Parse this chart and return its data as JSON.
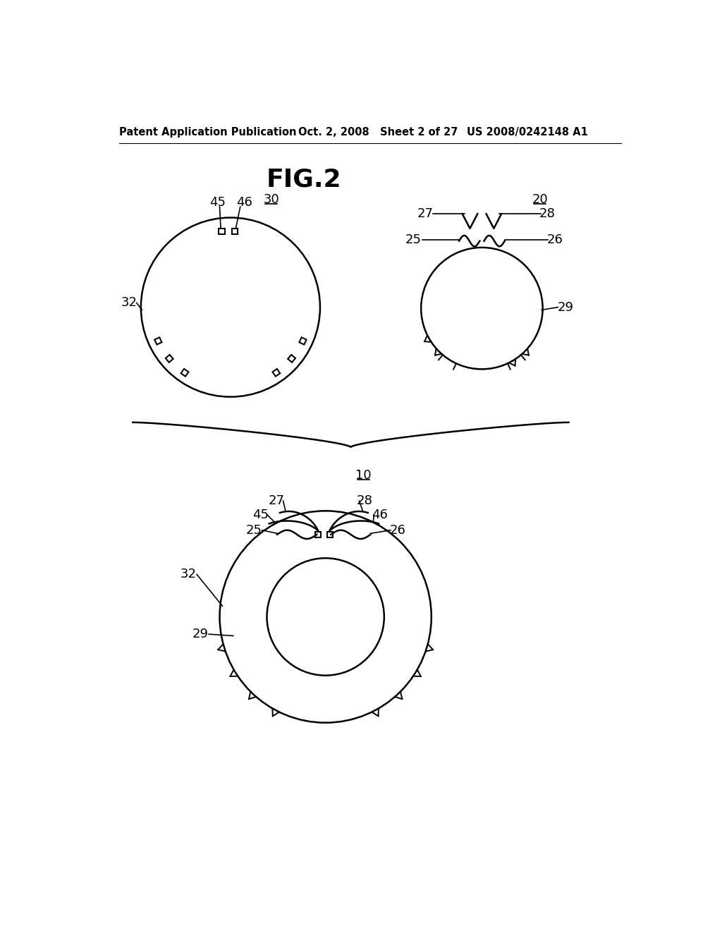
{
  "title": "FIG.2",
  "header_left": "Patent Application Publication",
  "header_middle": "Oct. 2, 2008   Sheet 2 of 27",
  "header_right": "US 2008/0242148 A1",
  "bg_color": "#ffffff",
  "line_color": "#000000"
}
